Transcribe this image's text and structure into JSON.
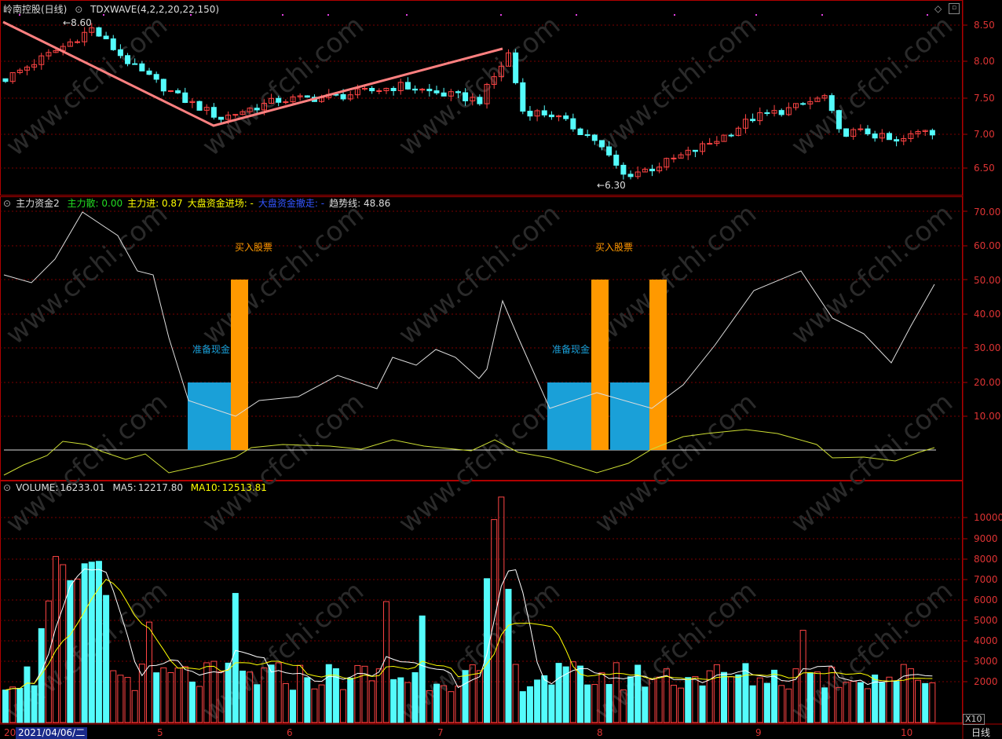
{
  "colors": {
    "up": "#ff4444",
    "down": "#54fcfc",
    "grid": "#7a0000",
    "border": "#b00000",
    "ma5": "#ffffff",
    "ma10": "#ffff00",
    "trend": "#ff8080",
    "cash": "#1aa0d8",
    "buy": "#ff9900",
    "green": "#22dd22"
  },
  "price_panel": {
    "title": "岭南控股(日线)",
    "indicator": "TDXWAVE(4,2,2,20,22,150)",
    "high_label": "8.60",
    "low_label": "6.30",
    "axis_ticks": [
      "8.50",
      "8.00",
      "7.50",
      "7.00",
      "6.50"
    ]
  },
  "money_panel": {
    "name": "主力资金2",
    "items": [
      {
        "label": "主力散:",
        "value": "0.00",
        "color": "#22dd22"
      },
      {
        "label": "主力进:",
        "value": "0.87",
        "color": "#ffff00"
      },
      {
        "label": "大盘资金进场:",
        "value": "-",
        "color": "#ffff00"
      },
      {
        "label": "大盘资金撤走:",
        "value": "-",
        "color": "#3355ff"
      },
      {
        "label": "趋势线:",
        "value": "48.86",
        "color": "#dddddd"
      }
    ],
    "annotations": {
      "prepare_cash": "准备现金",
      "buy_stock": "买入股票"
    },
    "axis_ticks": [
      "70.00",
      "60.00",
      "50.00",
      "40.00",
      "30.00",
      "20.00",
      "10.00"
    ]
  },
  "volume_panel": {
    "name": "VOLUME:",
    "volume": "16233.01",
    "ma5_label": "MA5:",
    "ma5": "12217.80",
    "ma10_label": "MA10:",
    "ma10": "12513.81",
    "axis_ticks": [
      "10000",
      "9000",
      "8000",
      "7000",
      "6000",
      "5000",
      "4000",
      "3000",
      "2000"
    ],
    "multiplier": "X10"
  },
  "x_axis": {
    "cursor_date": "2021/04/06/二",
    "year_prefix": "20",
    "months": [
      "5",
      "6",
      "7",
      "8",
      "9",
      "10"
    ],
    "period": "日线"
  },
  "watermark": "www.cfchi.com"
}
